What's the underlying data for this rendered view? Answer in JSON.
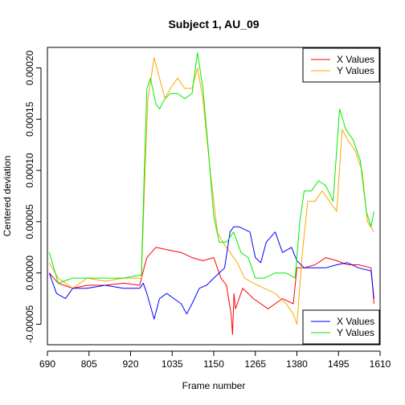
{
  "chart_data": {
    "type": "line",
    "title": "Subject 1, AU_09",
    "xlabel": "Frame number",
    "ylabel": "Centered deviation",
    "xlim": [
      690,
      1610
    ],
    "ylim": [
      -7e-05,
      0.00022
    ],
    "x_ticks": [
      690,
      805,
      920,
      1035,
      1150,
      1265,
      1380,
      1495,
      1610
    ],
    "x_tick_labels": [
      "690",
      "805",
      "920",
      "1035",
      "1150",
      "1265",
      "1380",
      "1495",
      "1610"
    ],
    "y_ticks": [
      -5e-05,
      0,
      5e-05,
      0.0001,
      0.00015,
      0.0002
    ],
    "y_tick_labels": [
      "-0.00005",
      "0.00000",
      "0.00005",
      "0.00010",
      "0.00015",
      "0.00020"
    ],
    "legends": [
      {
        "position": "top-right",
        "entries": [
          {
            "label": "X Values",
            "color": "#ff0000"
          },
          {
            "label": "Y Values",
            "color": "#ffa500"
          }
        ]
      },
      {
        "position": "bottom-right",
        "entries": [
          {
            "label": "X Values",
            "color": "#0000ff"
          },
          {
            "label": "Y Values",
            "color": "#00ee00"
          }
        ]
      }
    ],
    "series": [
      {
        "color": "#ff0000",
        "points": [
          [
            695,
            0
          ],
          [
            720,
            -1e-05
          ],
          [
            760,
            -1.5e-05
          ],
          [
            800,
            -1.2e-05
          ],
          [
            850,
            -1.2e-05
          ],
          [
            900,
            -1e-05
          ],
          [
            945,
            -1.2e-05
          ],
          [
            955,
            2e-06
          ],
          [
            965,
            1.5e-05
          ],
          [
            990,
            2.5e-05
          ],
          [
            1030,
            2.2e-05
          ],
          [
            1060,
            2e-05
          ],
          [
            1090,
            1.5e-05
          ],
          [
            1120,
            1.2e-05
          ],
          [
            1150,
            1.5e-05
          ],
          [
            1170,
            -5e-06
          ],
          [
            1185,
            -1.2e-05
          ],
          [
            1198,
            -4e-05
          ],
          [
            1202,
            -6e-05
          ],
          [
            1206,
            -2e-05
          ],
          [
            1210,
            -3.5e-05
          ],
          [
            1230,
            -1.5e-05
          ],
          [
            1260,
            -2.5e-05
          ],
          [
            1300,
            -3.5e-05
          ],
          [
            1340,
            -2.5e-05
          ],
          [
            1370,
            -3e-05
          ],
          [
            1380,
            5e-06
          ],
          [
            1400,
            5e-06
          ],
          [
            1430,
            8e-06
          ],
          [
            1460,
            1.5e-05
          ],
          [
            1490,
            1.2e-05
          ],
          [
            1520,
            8e-06
          ],
          [
            1550,
            8e-06
          ],
          [
            1585,
            5e-06
          ],
          [
            1593,
            -3e-05
          ]
        ]
      },
      {
        "color": "#ffa500",
        "points": [
          [
            695,
            1e-05
          ],
          [
            720,
            -5e-06
          ],
          [
            760,
            -1.5e-05
          ],
          [
            800,
            -5e-06
          ],
          [
            850,
            -8e-06
          ],
          [
            900,
            -5e-06
          ],
          [
            950,
            -5e-06
          ],
          [
            960,
            0.0001
          ],
          [
            968,
            0.00017
          ],
          [
            985,
            0.00021
          ],
          [
            1000,
            0.00019
          ],
          [
            1015,
            0.00017
          ],
          [
            1030,
            0.00018
          ],
          [
            1050,
            0.00019
          ],
          [
            1070,
            0.00018
          ],
          [
            1090,
            0.00018
          ],
          [
            1105,
            0.0002
          ],
          [
            1120,
            0.00017
          ],
          [
            1140,
            0.0001
          ],
          [
            1160,
            4e-05
          ],
          [
            1175,
            3e-05
          ],
          [
            1195,
            2e-05
          ],
          [
            1215,
            1e-05
          ],
          [
            1235,
            -5e-06
          ],
          [
            1260,
            -1e-05
          ],
          [
            1290,
            -1.5e-05
          ],
          [
            1320,
            -2e-05
          ],
          [
            1350,
            -3e-05
          ],
          [
            1370,
            -4e-05
          ],
          [
            1380,
            -5e-05
          ],
          [
            1395,
            2e-05
          ],
          [
            1410,
            7e-05
          ],
          [
            1430,
            7e-05
          ],
          [
            1450,
            8e-05
          ],
          [
            1470,
            7e-05
          ],
          [
            1490,
            6e-05
          ],
          [
            1505,
            0.00014
          ],
          [
            1520,
            0.00013
          ],
          [
            1540,
            0.00012
          ],
          [
            1560,
            0.0001
          ],
          [
            1575,
            5e-05
          ],
          [
            1593,
            4e-05
          ]
        ]
      },
      {
        "color": "#0000ff",
        "points": [
          [
            695,
            0
          ],
          [
            715,
            -2e-05
          ],
          [
            740,
            -2.5e-05
          ],
          [
            760,
            -1.5e-05
          ],
          [
            800,
            -1.5e-05
          ],
          [
            850,
            -1.2e-05
          ],
          [
            900,
            -1.5e-05
          ],
          [
            945,
            -1.5e-05
          ],
          [
            955,
            -1e-05
          ],
          [
            965,
            -2e-05
          ],
          [
            985,
            -4.5e-05
          ],
          [
            1000,
            -2.5e-05
          ],
          [
            1020,
            -2e-05
          ],
          [
            1040,
            -2.5e-05
          ],
          [
            1060,
            -3e-05
          ],
          [
            1075,
            -4e-05
          ],
          [
            1090,
            -3e-05
          ],
          [
            1110,
            -1.5e-05
          ],
          [
            1130,
            -1.2e-05
          ],
          [
            1150,
            -5e-06
          ],
          [
            1165,
            0
          ],
          [
            1180,
            5e-06
          ],
          [
            1195,
            4e-05
          ],
          [
            1205,
            4.5e-05
          ],
          [
            1220,
            4.5e-05
          ],
          [
            1250,
            4e-05
          ],
          [
            1265,
            1.5e-05
          ],
          [
            1280,
            1e-05
          ],
          [
            1295,
            3e-05
          ],
          [
            1320,
            4e-05
          ],
          [
            1340,
            2e-05
          ],
          [
            1365,
            2.5e-05
          ],
          [
            1380,
            1.2e-05
          ],
          [
            1400,
            5e-06
          ],
          [
            1430,
            5e-06
          ],
          [
            1460,
            5e-06
          ],
          [
            1490,
            8e-06
          ],
          [
            1520,
            1e-05
          ],
          [
            1550,
            5e-06
          ],
          [
            1585,
            2e-06
          ],
          [
            1593,
            -2.5e-05
          ]
        ]
      },
      {
        "color": "#00ee00",
        "points": [
          [
            695,
            2e-05
          ],
          [
            720,
            -1e-05
          ],
          [
            760,
            -5e-06
          ],
          [
            800,
            -5e-06
          ],
          [
            850,
            -5e-06
          ],
          [
            900,
            -5e-06
          ],
          [
            950,
            -2e-06
          ],
          [
            958,
            0.0001
          ],
          [
            965,
            0.00018
          ],
          [
            975,
            0.00019
          ],
          [
            990,
            0.000165
          ],
          [
            1000,
            0.00016
          ],
          [
            1015,
            0.00017
          ],
          [
            1030,
            0.000175
          ],
          [
            1050,
            0.000175
          ],
          [
            1070,
            0.00017
          ],
          [
            1090,
            0.000175
          ],
          [
            1105,
            0.000215
          ],
          [
            1120,
            0.00018
          ],
          [
            1135,
            0.00012
          ],
          [
            1150,
            5.5e-05
          ],
          [
            1165,
            3e-05
          ],
          [
            1185,
            3e-05
          ],
          [
            1205,
            4e-05
          ],
          [
            1225,
            2e-05
          ],
          [
            1245,
            1.5e-05
          ],
          [
            1265,
            -5e-06
          ],
          [
            1290,
            -5e-06
          ],
          [
            1320,
            0
          ],
          [
            1350,
            0
          ],
          [
            1375,
            -5e-06
          ],
          [
            1388,
            5e-05
          ],
          [
            1400,
            8e-05
          ],
          [
            1420,
            8e-05
          ],
          [
            1440,
            9e-05
          ],
          [
            1460,
            8.5e-05
          ],
          [
            1480,
            7e-05
          ],
          [
            1498,
            0.00016
          ],
          [
            1515,
            0.00014
          ],
          [
            1535,
            0.00013
          ],
          [
            1555,
            0.00011
          ],
          [
            1572,
            6e-05
          ],
          [
            1585,
            4.5e-05
          ],
          [
            1593,
            6e-05
          ]
        ]
      }
    ]
  }
}
